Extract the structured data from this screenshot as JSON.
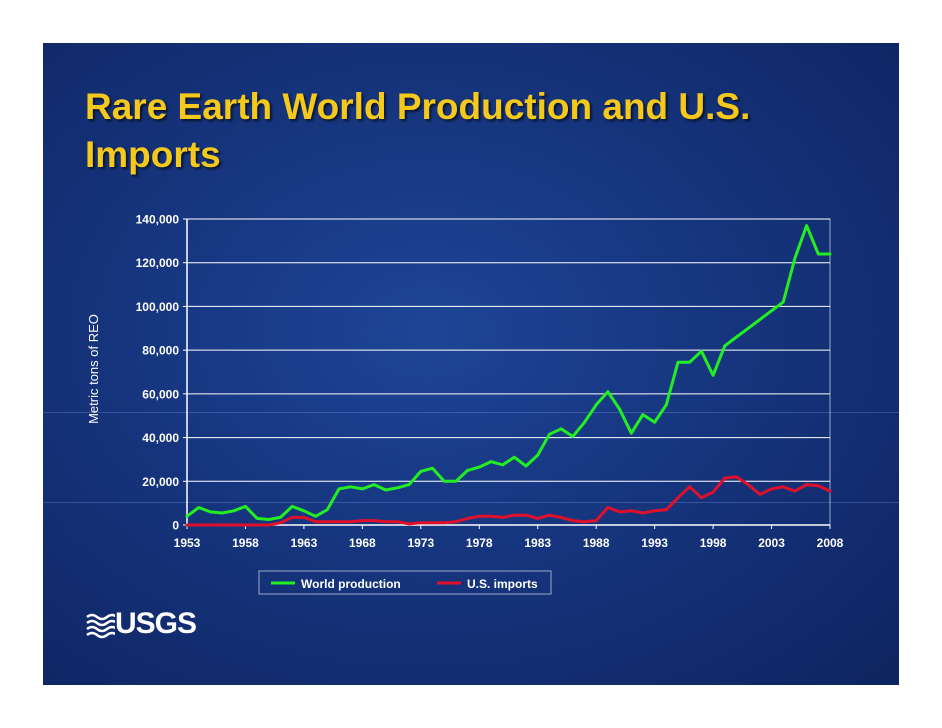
{
  "slide": {
    "title": "Rare Earth World Production and U.S. Imports",
    "logo_text": "USGS"
  },
  "colors": {
    "background": "#16357e",
    "title": "#f5c81c",
    "world": "#22ee22",
    "us": "#e0102a"
  },
  "chart_data": {
    "type": "line",
    "title": "",
    "xlabel": "",
    "ylabel": "Metric tons of REO",
    "xlim": [
      1953,
      2008
    ],
    "ylim": [
      0,
      140000
    ],
    "x_ticks": [
      1953,
      1958,
      1963,
      1968,
      1973,
      1978,
      1983,
      1988,
      1993,
      1998,
      2003,
      2008
    ],
    "x_tick_labels": [
      "1953",
      "1958",
      "1963",
      "1968",
      "1973",
      "1978",
      "1983",
      "1988",
      "1993",
      "1998",
      "2003",
      "2008"
    ],
    "y_ticks": [
      0,
      20000,
      40000,
      60000,
      80000,
      100000,
      120000,
      140000
    ],
    "y_tick_labels": [
      "0",
      "20,000",
      "40,000",
      "60,000",
      "80,000",
      "100,000",
      "120,000",
      "140,000"
    ],
    "grid": true,
    "legend_position": "bottom",
    "x": [
      1953,
      1954,
      1955,
      1956,
      1957,
      1958,
      1959,
      1960,
      1961,
      1962,
      1963,
      1964,
      1965,
      1966,
      1967,
      1968,
      1969,
      1970,
      1971,
      1972,
      1973,
      1974,
      1975,
      1976,
      1977,
      1978,
      1979,
      1980,
      1981,
      1982,
      1983,
      1984,
      1985,
      1986,
      1987,
      1988,
      1989,
      1990,
      1991,
      1992,
      1993,
      1994,
      1995,
      1996,
      1997,
      1998,
      1999,
      2000,
      2001,
      2002,
      2003,
      2004,
      2005,
      2006,
      2007,
      2008
    ],
    "series": [
      {
        "name": "World production",
        "color": "#22ee22",
        "values": [
          4000,
          8000,
          6000,
          5500,
          6500,
          8500,
          3000,
          2500,
          3500,
          8500,
          6500,
          4000,
          7000,
          16500,
          17500,
          16500,
          18500,
          16000,
          17000,
          18500,
          24500,
          26000,
          20000,
          20000,
          25000,
          26500,
          29000,
          27500,
          31000,
          27000,
          32000,
          41500,
          44000,
          40500,
          47000,
          55000,
          61000,
          53000,
          42000,
          50500,
          47000,
          55000,
          74500,
          74500,
          79500,
          68500,
          82000,
          86000,
          90000,
          94000,
          98000,
          102000,
          122000,
          137000,
          124000,
          124000
        ]
      },
      {
        "name": "U.S. imports",
        "color": "#e0102a",
        "values": [
          0,
          0,
          0,
          0,
          0,
          0,
          0,
          0,
          1000,
          3500,
          3500,
          1500,
          1500,
          1500,
          1500,
          2000,
          2000,
          1500,
          1500,
          500,
          1000,
          1000,
          1000,
          1500,
          3000,
          4000,
          4000,
          3500,
          4500,
          4500,
          3000,
          4500,
          3500,
          2000,
          1500,
          2000,
          8000,
          6000,
          6500,
          5500,
          6500,
          7000,
          12500,
          17500,
          12500,
          15000,
          21500,
          22000,
          18500,
          14000,
          16500,
          17500,
          15500,
          18500,
          18000,
          15500
        ]
      }
    ]
  }
}
